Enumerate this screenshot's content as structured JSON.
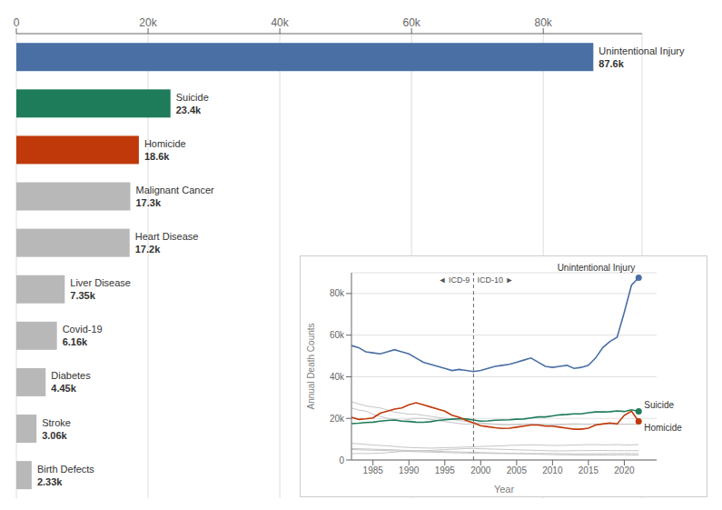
{
  "chart_data": [
    {
      "type": "bar",
      "orientation": "horizontal",
      "categories": [
        "Unintentional Injury",
        "Suicide",
        "Homicide",
        "Malignant Cancer",
        "Heart Disease",
        "Liver Disease",
        "Covid-19",
        "Diabetes",
        "Stroke",
        "Birth Defects"
      ],
      "values": [
        87600,
        23400,
        18600,
        17300,
        17200,
        7350,
        6160,
        4450,
        3060,
        2330
      ],
      "value_labels": [
        "87.6k",
        "23.4k",
        "18.6k",
        "17.3k",
        "17.2k",
        "7.35k",
        "6.16k",
        "4.45k",
        "3.06k",
        "2.33k"
      ],
      "colors": [
        "#4a6fa5",
        "#1e7c5a",
        "#c0390b",
        "#b8b8b8",
        "#b8b8b8",
        "#b8b8b8",
        "#b8b8b8",
        "#b8b8b8",
        "#b8b8b8",
        "#b8b8b8"
      ],
      "xlim": [
        0,
        95000
      ],
      "xticks": [
        0,
        {
          "value": 20000,
          "label": "20k"
        },
        {
          "value": 40000,
          "label": "40k"
        },
        {
          "value": 60000,
          "label": "60k"
        },
        {
          "value": 80000,
          "label": "80k"
        }
      ],
      "grid": true,
      "data_labels": true,
      "tick_labels": "x"
    },
    {
      "type": "line",
      "x": [
        1982,
        1983,
        1984,
        1985,
        1986,
        1987,
        1988,
        1989,
        1990,
        1991,
        1992,
        1993,
        1994,
        1995,
        1996,
        1997,
        1998,
        1999,
        2000,
        2001,
        2002,
        2003,
        2004,
        2005,
        2006,
        2007,
        2008,
        2009,
        2010,
        2011,
        2012,
        2013,
        2014,
        2015,
        2016,
        2017,
        2018,
        2019,
        2020,
        2021,
        2022
      ],
      "series": [
        {
          "color": "#c5c5c5",
          "values": [
            25000,
            24000,
            23500,
            22000,
            21000,
            20000,
            19500,
            19000,
            19500,
            20000,
            20000,
            19500,
            19000,
            18500,
            18000,
            17500,
            17200,
            17500,
            17500,
            17300,
            17200,
            17000,
            17000,
            17200,
            17300,
            17400,
            17200,
            17000,
            17000,
            17200,
            17300,
            17400,
            17300,
            17200,
            17300,
            17300,
            17200,
            17300,
            17200,
            17200,
            17300
          ]
        },
        {
          "color": "#c5c5c5",
          "values": [
            28000,
            27000,
            26000,
            25500,
            25000,
            24000,
            23000,
            22500,
            22000,
            22000,
            21500,
            21000,
            20500,
            20000,
            19500,
            19000,
            18500,
            18000,
            17800,
            17500,
            17200,
            17000,
            17000,
            17000,
            17000,
            17100,
            17200,
            17100,
            17000,
            17000,
            17100,
            17100,
            17200,
            17200,
            17300,
            17300,
            17200,
            17200,
            17200,
            17200,
            17200
          ]
        },
        {
          "color": "#c5c5c5",
          "values": [
            8000,
            7800,
            7500,
            7200,
            7000,
            6800,
            6500,
            6200,
            6000,
            5900,
            5800,
            5700,
            5800,
            5900,
            6000,
            6100,
            6200,
            6300,
            6500,
            6600,
            6700,
            6800,
            7000,
            7100,
            7200,
            7300,
            7200,
            7100,
            7000,
            7000,
            7100,
            7200,
            7300,
            7400,
            7400,
            7300,
            7300,
            7400,
            7200,
            7300,
            7350
          ]
        },
        {
          "color": "#c5c5c5",
          "values": [
            3000,
            3200,
            3100,
            3200,
            3300,
            3500,
            3800,
            4200,
            4300,
            4400,
            4500,
            4600,
            4800,
            5000,
            5200,
            5300,
            5500,
            5500,
            5400,
            5300,
            5200,
            5100,
            5000,
            4900,
            4800,
            4700,
            4600,
            4500,
            4400,
            4400,
            4400,
            4500,
            4500,
            4500,
            4600,
            4600,
            4500,
            4500,
            4500,
            4500,
            4450
          ]
        },
        {
          "color": "#c5c5c5",
          "values": [
            5000,
            4900,
            4800,
            4700,
            4600,
            4500,
            4400,
            4200,
            4100,
            4000,
            3900,
            3800,
            3700,
            3600,
            3500,
            3400,
            3300,
            3300,
            3200,
            3200,
            3100,
            3100,
            3100,
            3100,
            3100,
            3100,
            3100,
            3100,
            3100,
            3100,
            3000,
            3000,
            3000,
            3000,
            3000,
            3000,
            3100,
            3100,
            3100,
            3100,
            3060
          ]
        },
        {
          "color": "#c5c5c5",
          "values": [
            5500,
            5400,
            5300,
            5200,
            5100,
            5000,
            4900,
            4700,
            4600,
            4500,
            4400,
            4300,
            4200,
            4100,
            4000,
            3900,
            3800,
            3700,
            3600,
            3500,
            3400,
            3300,
            3200,
            3100,
            3000,
            2900,
            2800,
            2700,
            2600,
            2500,
            2500,
            2400,
            2400,
            2400,
            2400,
            2400,
            2400,
            2400,
            2500,
            2400,
            2330
          ]
        },
        {
          "name": "Unintentional Injury",
          "color": "#4a6fa5",
          "values": [
            55000,
            54000,
            52000,
            51500,
            51000,
            52000,
            53000,
            52000,
            51000,
            49000,
            47000,
            46000,
            45000,
            44000,
            43000,
            43500,
            43000,
            42500,
            43000,
            44000,
            45000,
            45500,
            46000,
            47000,
            48000,
            49000,
            47000,
            45000,
            44500,
            45000,
            45500,
            44000,
            44500,
            45500,
            49000,
            54000,
            57000,
            59000,
            71000,
            84000,
            87600
          ]
        },
        {
          "name": "Suicide",
          "color": "#1e7c5a",
          "values": [
            17500,
            17700,
            18000,
            18200,
            18700,
            19000,
            19200,
            18700,
            18500,
            18200,
            18100,
            18400,
            19000,
            19300,
            19600,
            19900,
            19700,
            19200,
            18700,
            18800,
            19100,
            19200,
            19300,
            19600,
            19700,
            20200,
            20700,
            20700,
            21200,
            21700,
            21900,
            22200,
            22200,
            22700,
            23100,
            23100,
            23200,
            23600,
            23300,
            24100,
            23400
          ]
        },
        {
          "name": "Homicide",
          "color": "#c0390b",
          "values": [
            20500,
            19500,
            19800,
            20200,
            22500,
            23500,
            24500,
            25000,
            26500,
            27500,
            26500,
            25500,
            24500,
            23500,
            21500,
            20500,
            19000,
            17800,
            16500,
            16000,
            15500,
            15200,
            15300,
            15800,
            16300,
            16800,
            16800,
            16300,
            16300,
            15800,
            15300,
            14800,
            14800,
            15300,
            16800,
            17300,
            17800,
            17300,
            21500,
            23500,
            18600
          ]
        }
      ],
      "xlim": [
        1982,
        2024.5
      ],
      "xticks": [
        1985,
        1990,
        1995,
        2000,
        2005,
        2010,
        2015,
        2020
      ],
      "ylim": [
        0,
        90000
      ],
      "yticks": [
        0,
        {
          "value": 20000,
          "label": "20k"
        },
        {
          "value": 40000,
          "label": "40k"
        },
        {
          "value": 60000,
          "label": "60k"
        },
        {
          "value": 80000,
          "label": "80k"
        }
      ],
      "xlabel": "Year",
      "ylabel": "Annual Death Counts",
      "grid": true,
      "annotations": [
        {
          "text": "◄ ICD-9",
          "x": 1999
        },
        {
          "text": "ICD-10 ►",
          "x": 1999
        }
      ],
      "reference_lines": [
        {
          "x": 1999,
          "line_style": "dashed"
        }
      ]
    }
  ]
}
